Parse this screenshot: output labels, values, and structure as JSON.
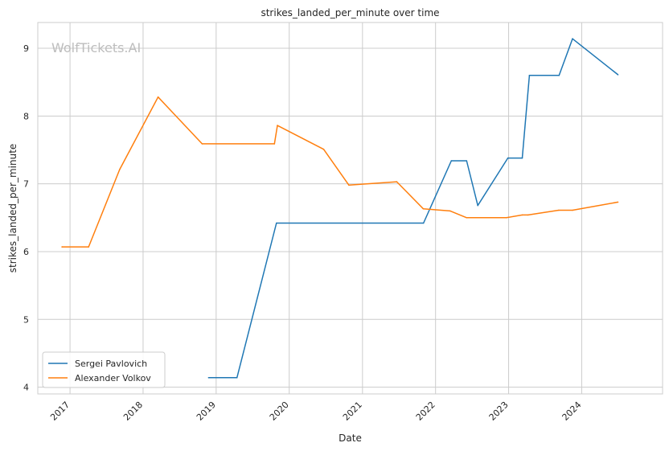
{
  "chart_data": {
    "type": "line",
    "title": "strikes_landed_per_minute over time",
    "xlabel": "Date",
    "ylabel": "strikes_landed_per_minute",
    "watermark": "WolfTickets.AI",
    "x_ticks": [
      "2017",
      "2018",
      "2019",
      "2020",
      "2021",
      "2022",
      "2023",
      "2024"
    ],
    "y_ticks": [
      4,
      5,
      6,
      7,
      8,
      9
    ],
    "xlim": [
      "2016-07-24",
      "2025-02-08"
    ],
    "ylim": [
      3.9,
      9.38
    ],
    "grid": true,
    "legend_position": "lower-left",
    "series": [
      {
        "name": "Sergei Pavlovich",
        "color": "#1f77b4",
        "points": [
          [
            "2018-11-24",
            4.14
          ],
          [
            "2019-04-15",
            4.14
          ],
          [
            "2019-10-29",
            6.42
          ],
          [
            "2021-11-02",
            6.42
          ],
          [
            "2022-03-21",
            7.34
          ],
          [
            "2022-06-05",
            7.34
          ],
          [
            "2022-07-31",
            6.68
          ],
          [
            "2022-12-28",
            7.38
          ],
          [
            "2023-03-10",
            7.38
          ],
          [
            "2023-04-15",
            8.6
          ],
          [
            "2023-09-10",
            8.6
          ],
          [
            "2023-11-16",
            9.14
          ],
          [
            "2024-06-30",
            8.61
          ]
        ]
      },
      {
        "name": "Alexander Volkov",
        "color": "#ff7f0e",
        "points": [
          [
            "2016-11-22",
            6.07
          ],
          [
            "2017-04-04",
            6.07
          ],
          [
            "2017-09-06",
            7.21
          ],
          [
            "2018-03-17",
            8.28
          ],
          [
            "2018-10-23",
            7.59
          ],
          [
            "2019-10-19",
            7.59
          ],
          [
            "2019-11-03",
            7.86
          ],
          [
            "2020-06-21",
            7.51
          ],
          [
            "2020-10-25",
            6.98
          ],
          [
            "2021-06-21",
            7.03
          ],
          [
            "2021-11-01",
            6.63
          ],
          [
            "2022-03-15",
            6.6
          ],
          [
            "2022-06-05",
            6.5
          ],
          [
            "2022-12-21",
            6.5
          ],
          [
            "2023-03-10",
            6.54
          ],
          [
            "2023-04-08",
            6.54
          ],
          [
            "2023-09-08",
            6.61
          ],
          [
            "2023-11-16",
            6.61
          ],
          [
            "2024-06-30",
            6.73
          ]
        ]
      }
    ]
  }
}
